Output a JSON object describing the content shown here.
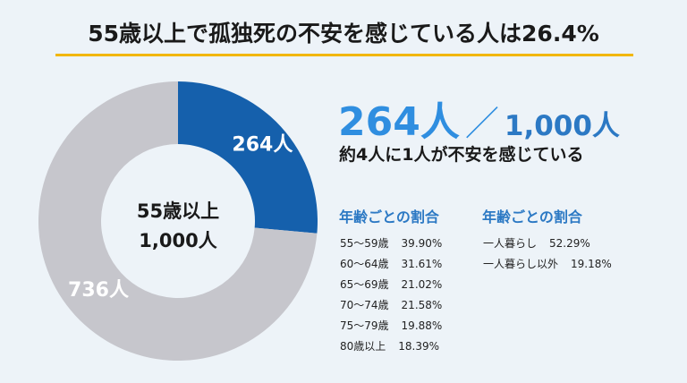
{
  "title": "55歳以上で孤独死の不安を感じている人は26.4%",
  "headline": {
    "count": "264人",
    "separator": "／",
    "total": "1,000人",
    "subline": "約4人に1人が不安を感じている"
  },
  "colors": {
    "accent_yellow": "#f2b705",
    "slice_highlight": "#1560ac",
    "slice_rest": "#c6c6cc",
    "text_blue": "#2c79c4",
    "headline_blue": "#2f8ee0"
  },
  "breakdown_age": {
    "heading": "年齢ごとの割合",
    "items": [
      {
        "label": "55〜59歳",
        "value": "39.90%"
      },
      {
        "label": "60〜64歳",
        "value": "31.61%"
      },
      {
        "label": "65〜69歳",
        "value": "21.02%"
      },
      {
        "label": "70〜74歳",
        "value": "21.58%"
      },
      {
        "label": "75〜79歳",
        "value": "19.88%"
      },
      {
        "label": "80歳以上",
        "value": "18.39%"
      }
    ]
  },
  "breakdown_living": {
    "heading": "年齢ごとの割合",
    "items": [
      {
        "label": "一人暮らし",
        "value": "52.29%"
      },
      {
        "label": "一人暮らし以外",
        "value": "19.18%"
      }
    ]
  },
  "chart_data": {
    "type": "pie",
    "donut": true,
    "center_label": [
      "55歳以上",
      "1,000人"
    ],
    "categories": [
      "264人",
      "736人"
    ],
    "values": [
      264,
      736
    ],
    "colors": [
      "#1560ac",
      "#c6c6cc"
    ]
  }
}
